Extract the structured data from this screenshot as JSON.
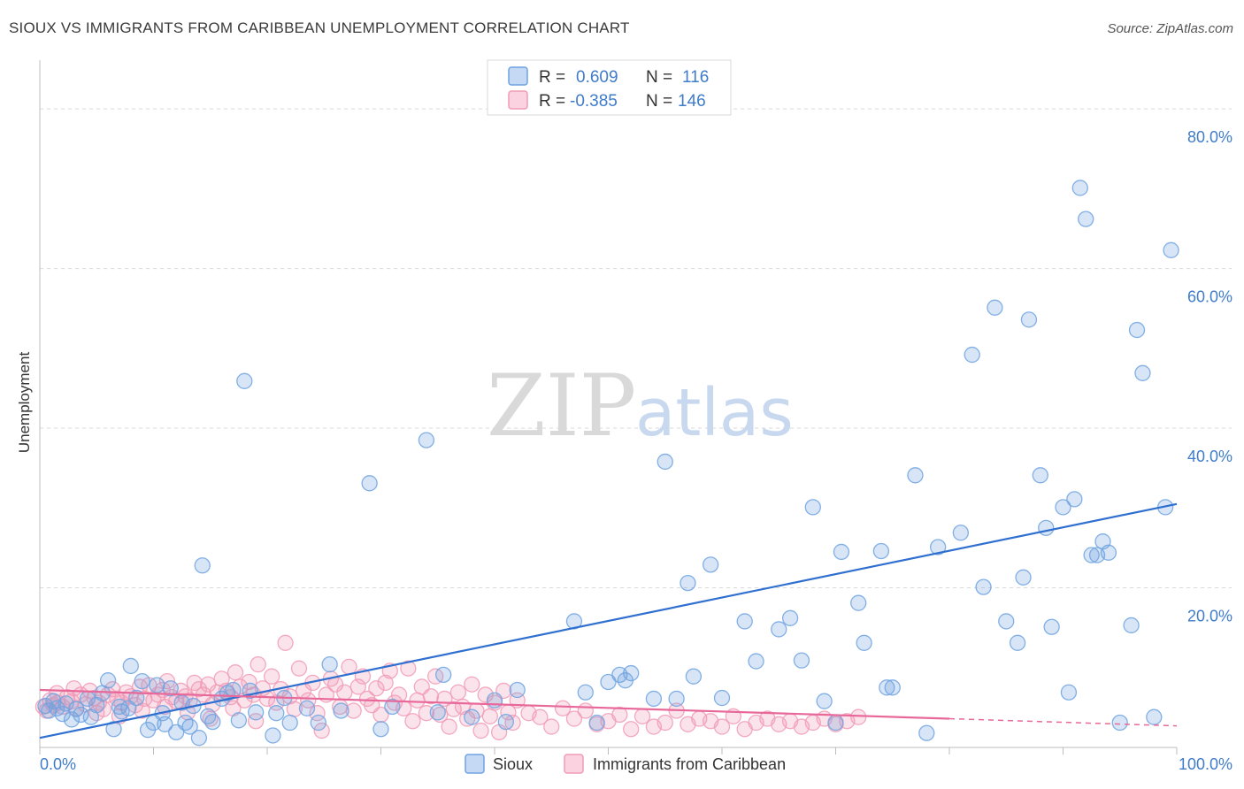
{
  "title": "SIOUX VS IMMIGRANTS FROM CARIBBEAN UNEMPLOYMENT CORRELATION CHART",
  "source": "Source: ZipAtlas.com",
  "watermark": {
    "zip": "ZIP",
    "atlas": "atlas"
  },
  "colors": {
    "sioux": "#6fa3e0",
    "sioux_line": "#2f6fd0",
    "caribbean": "#f19bb6",
    "caribbean_line": "#e8689a",
    "tick": "#3f7cc9",
    "grid": "#d9d9d9"
  },
  "stats": [
    {
      "r_label": "R =",
      "r": "0.609",
      "n_label": "N =",
      "n": "116"
    },
    {
      "r_label": "R =",
      "r": "-0.385",
      "n_label": "N =",
      "n": "146"
    }
  ],
  "chart_data": {
    "type": "scatter",
    "title": "SIOUX VS IMMIGRANTS FROM CARIBBEAN UNEMPLOYMENT CORRELATION CHART",
    "xlabel": "",
    "ylabel": "Unemployment",
    "xlim": [
      0,
      100
    ],
    "ylim": [
      0,
      85
    ],
    "y_ticks": [
      20,
      40,
      60,
      80
    ],
    "y_tick_labels": [
      "20.0%",
      "40.0%",
      "60.0%",
      "80.0%"
    ],
    "x_tick_labels": [
      "0.0%",
      "100.0%"
    ],
    "grid": true,
    "legend": "bottom-center",
    "series": [
      {
        "name": "Sioux",
        "trend": {
          "x": [
            0,
            100
          ],
          "y": [
            1.2,
            30.5
          ]
        },
        "points": [
          [
            0.5,
            5.2
          ],
          [
            0.8,
            4.6
          ],
          [
            1.2,
            5.8
          ],
          [
            1.5,
            4.9
          ],
          [
            2,
            4.2
          ],
          [
            2.3,
            5.5
          ],
          [
            2.8,
            3.5
          ],
          [
            3.2,
            4.8
          ],
          [
            3.6,
            4.1
          ],
          [
            4.2,
            6.1
          ],
          [
            4.5,
            3.8
          ],
          [
            5,
            5.3
          ],
          [
            5.5,
            6.8
          ],
          [
            6,
            8.4
          ],
          [
            6.5,
            2.3
          ],
          [
            7,
            5.1
          ],
          [
            7.2,
            4.5
          ],
          [
            7.8,
            4.9
          ],
          [
            8,
            10.2
          ],
          [
            8.5,
            6.2
          ],
          [
            9,
            8.3
          ],
          [
            9.5,
            2.2
          ],
          [
            10,
            3.1
          ],
          [
            10.3,
            7.8
          ],
          [
            10.8,
            4.3
          ],
          [
            11,
            2.9
          ],
          [
            11.5,
            7.4
          ],
          [
            12,
            1.9
          ],
          [
            12.5,
            5.6
          ],
          [
            12.8,
            3.1
          ],
          [
            13.2,
            2.6
          ],
          [
            13.5,
            5.2
          ],
          [
            14,
            1.2
          ],
          [
            14.3,
            22.8
          ],
          [
            14.8,
            3.9
          ],
          [
            15.2,
            3.2
          ],
          [
            16,
            6.1
          ],
          [
            16.5,
            6.8
          ],
          [
            17,
            7.2
          ],
          [
            17.5,
            3.4
          ],
          [
            18,
            45.9
          ],
          [
            18.5,
            7.1
          ],
          [
            19,
            4.4
          ],
          [
            20.5,
            1.5
          ],
          [
            20.8,
            4.3
          ],
          [
            21.5,
            6.2
          ],
          [
            22,
            3.1
          ],
          [
            23.5,
            4.9
          ],
          [
            24.5,
            3.1
          ],
          [
            25.5,
            10.4
          ],
          [
            26.5,
            4.6
          ],
          [
            29,
            33.1
          ],
          [
            30,
            2.3
          ],
          [
            31,
            5.1
          ],
          [
            34,
            38.5
          ],
          [
            35,
            4.4
          ],
          [
            35.5,
            9.1
          ],
          [
            38,
            3.8
          ],
          [
            40,
            5.9
          ],
          [
            41,
            3.2
          ],
          [
            42,
            7.2
          ],
          [
            47,
            15.8
          ],
          [
            48,
            6.9
          ],
          [
            49,
            3.1
          ],
          [
            50,
            8.2
          ],
          [
            51,
            9.1
          ],
          [
            51.5,
            8.4
          ],
          [
            52,
            9.3
          ],
          [
            54,
            6.1
          ],
          [
            55,
            35.8
          ],
          [
            56,
            6.1
          ],
          [
            57,
            20.6
          ],
          [
            57.5,
            8.9
          ],
          [
            59,
            22.9
          ],
          [
            60,
            6.2
          ],
          [
            62,
            15.8
          ],
          [
            63,
            10.8
          ],
          [
            65,
            14.8
          ],
          [
            66,
            16.2
          ],
          [
            67,
            10.9
          ],
          [
            68,
            30.1
          ],
          [
            69,
            5.8
          ],
          [
            70,
            3.1
          ],
          [
            70.5,
            24.5
          ],
          [
            72,
            18.1
          ],
          [
            72.5,
            13.1
          ],
          [
            74,
            24.6
          ],
          [
            74.5,
            7.5
          ],
          [
            75,
            7.5
          ],
          [
            77,
            34.1
          ],
          [
            78,
            1.8
          ],
          [
            79,
            25.1
          ],
          [
            81,
            26.9
          ],
          [
            82,
            49.2
          ],
          [
            83,
            20.1
          ],
          [
            84,
            55.1
          ],
          [
            85,
            15.8
          ],
          [
            86,
            13.1
          ],
          [
            86.5,
            21.3
          ],
          [
            87,
            53.6
          ],
          [
            88,
            34.1
          ],
          [
            88.5,
            27.5
          ],
          [
            89,
            15.1
          ],
          [
            90,
            30.1
          ],
          [
            90.5,
            6.9
          ],
          [
            91,
            31.1
          ],
          [
            91.5,
            70.1
          ],
          [
            92,
            66.2
          ],
          [
            92.5,
            24.1
          ],
          [
            93,
            24.1
          ],
          [
            93.5,
            25.8
          ],
          [
            94,
            24.4
          ],
          [
            95,
            3.1
          ],
          [
            96,
            15.3
          ],
          [
            96.5,
            52.3
          ],
          [
            97,
            46.9
          ],
          [
            98,
            3.8
          ],
          [
            99,
            30.1
          ],
          [
            99.5,
            62.3
          ]
        ]
      },
      {
        "name": "Immigrants from Caribbean",
        "trend": {
          "x": [
            0,
            80
          ],
          "y": [
            7.2,
            3.6
          ]
        },
        "trend_dashed": {
          "x": [
            80,
            100
          ],
          "y": [
            3.6,
            2.7
          ]
        },
        "points": [
          [
            0.3,
            5.1
          ],
          [
            0.6,
            4.6
          ],
          [
            0.9,
            5.9
          ],
          [
            1.2,
            5.3
          ],
          [
            1.6,
            5.6
          ],
          [
            2,
            5.1
          ],
          [
            2.4,
            6.3
          ],
          [
            2.8,
            5.8
          ],
          [
            3.2,
            4.9
          ],
          [
            3.6,
            6.6
          ],
          [
            4,
            5.4
          ],
          [
            4.4,
            7.1
          ],
          [
            4.8,
            6.2
          ],
          [
            5.2,
            5.6
          ],
          [
            5.6,
            4.8
          ],
          [
            6,
            6.6
          ],
          [
            6.4,
            7.3
          ],
          [
            6.8,
            6.1
          ],
          [
            7.2,
            5.6
          ],
          [
            7.6,
            6.9
          ],
          [
            8,
            6.4
          ],
          [
            8.4,
            5.3
          ],
          [
            8.8,
            7.6
          ],
          [
            9.2,
            6.1
          ],
          [
            9.6,
            7.8
          ],
          [
            10,
            5.9
          ],
          [
            10.4,
            6.6
          ],
          [
            10.8,
            7.2
          ],
          [
            11.2,
            8.3
          ],
          [
            11.6,
            6.3
          ],
          [
            12,
            5.8
          ],
          [
            12.4,
            7.1
          ],
          [
            12.8,
            6.4
          ],
          [
            13.2,
            5.9
          ],
          [
            13.6,
            8.1
          ],
          [
            14,
            7.3
          ],
          [
            14.4,
            6.6
          ],
          [
            14.8,
            7.9
          ],
          [
            15.2,
            5.4
          ],
          [
            15.6,
            6.9
          ],
          [
            16,
            8.6
          ],
          [
            16.4,
            7.1
          ],
          [
            16.8,
            6.3
          ],
          [
            17.2,
            9.4
          ],
          [
            17.6,
            7.6
          ],
          [
            18,
            5.9
          ],
          [
            18.4,
            8.2
          ],
          [
            18.8,
            6.6
          ],
          [
            19.2,
            10.4
          ],
          [
            19.6,
            7.4
          ],
          [
            20,
            6.1
          ],
          [
            20.4,
            8.9
          ],
          [
            20.8,
            5.6
          ],
          [
            21.2,
            7.3
          ],
          [
            21.6,
            13.1
          ],
          [
            22,
            6.4
          ],
          [
            22.4,
            4.8
          ],
          [
            22.8,
            9.9
          ],
          [
            23.2,
            7.1
          ],
          [
            23.6,
            5.9
          ],
          [
            24,
            8.1
          ],
          [
            24.4,
            4.3
          ],
          [
            24.8,
            2.1
          ],
          [
            25.2,
            6.6
          ],
          [
            25.6,
            8.6
          ],
          [
            26,
            7.9
          ],
          [
            26.4,
            5.1
          ],
          [
            26.8,
            6.9
          ],
          [
            27.2,
            10.1
          ],
          [
            27.6,
            4.6
          ],
          [
            28,
            7.6
          ],
          [
            28.4,
            8.9
          ],
          [
            28.8,
            6.1
          ],
          [
            29.2,
            5.3
          ],
          [
            29.6,
            7.4
          ],
          [
            30,
            4.1
          ],
          [
            30.4,
            8.1
          ],
          [
            30.8,
            9.6
          ],
          [
            31.2,
            5.6
          ],
          [
            31.6,
            6.6
          ],
          [
            32,
            4.9
          ],
          [
            32.4,
            9.9
          ],
          [
            32.8,
            3.3
          ],
          [
            33.2,
            5.9
          ],
          [
            33.6,
            7.6
          ],
          [
            34,
            4.3
          ],
          [
            34.4,
            6.4
          ],
          [
            34.8,
            8.9
          ],
          [
            35.2,
            4.1
          ],
          [
            35.6,
            6.1
          ],
          [
            36,
            2.6
          ],
          [
            36.4,
            4.8
          ],
          [
            36.8,
            6.9
          ],
          [
            37.2,
            5.1
          ],
          [
            37.6,
            3.6
          ],
          [
            38,
            7.9
          ],
          [
            38.4,
            4.6
          ],
          [
            38.8,
            2.1
          ],
          [
            39.2,
            6.6
          ],
          [
            39.6,
            3.9
          ],
          [
            40,
            5.6
          ],
          [
            40.4,
            1.9
          ],
          [
            40.8,
            7.1
          ],
          [
            41.2,
            4.4
          ],
          [
            41.6,
            3.1
          ],
          [
            42,
            5.9
          ],
          [
            43,
            4.3
          ],
          [
            44,
            3.8
          ],
          [
            45,
            2.6
          ],
          [
            46,
            4.9
          ],
          [
            47,
            3.6
          ],
          [
            48,
            4.6
          ],
          [
            49,
            2.9
          ],
          [
            50,
            3.3
          ],
          [
            51,
            4.1
          ],
          [
            52,
            2.3
          ],
          [
            53,
            3.9
          ],
          [
            54,
            2.6
          ],
          [
            55,
            3.1
          ],
          [
            56,
            4.6
          ],
          [
            57,
            2.9
          ],
          [
            58,
            3.6
          ],
          [
            59,
            3.3
          ],
          [
            60,
            2.6
          ],
          [
            61,
            3.9
          ],
          [
            62,
            2.3
          ],
          [
            63,
            3.1
          ],
          [
            64,
            3.6
          ],
          [
            65,
            2.9
          ],
          [
            66,
            3.3
          ],
          [
            67,
            2.6
          ],
          [
            68,
            3.1
          ],
          [
            69,
            3.6
          ],
          [
            70,
            2.9
          ],
          [
            71,
            3.3
          ],
          [
            72,
            3.8
          ],
          [
            1.5,
            6.8
          ],
          [
            3,
            7.4
          ],
          [
            5,
            4.3
          ],
          [
            7,
            3.9
          ],
          [
            9,
            4.6
          ],
          [
            11,
            5.1
          ],
          [
            13,
            4.4
          ],
          [
            15,
            3.6
          ],
          [
            17,
            4.9
          ],
          [
            19,
            3.3
          ]
        ]
      }
    ]
  }
}
